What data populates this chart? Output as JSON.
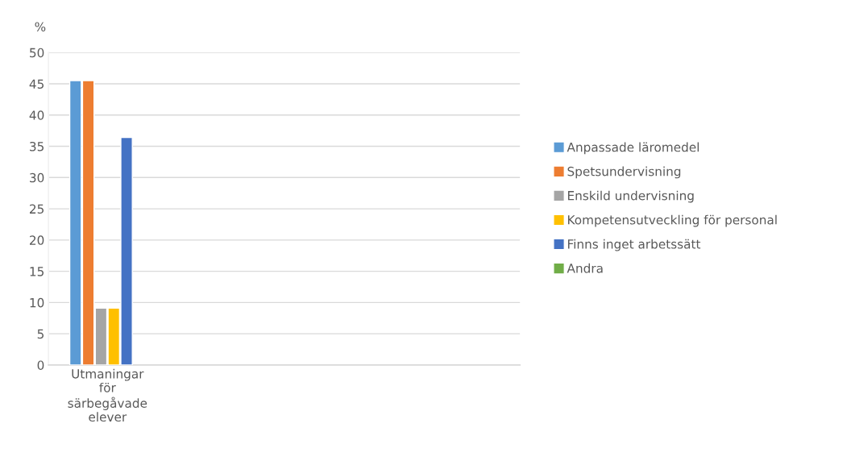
{
  "chart_data": {
    "type": "bar",
    "ylabel": "%",
    "categories": [
      "Utmaningar för särbegåvade elever",
      null,
      null,
      null
    ],
    "series": [
      {
        "name": "Anpassade läromedel",
        "color": "#5b9bd5",
        "values": [
          45.5,
          null,
          null,
          null
        ]
      },
      {
        "name": "Spetsundervisning",
        "color": "#ed7d31",
        "values": [
          45.5,
          null,
          null,
          null
        ]
      },
      {
        "name": "Enskild undervisning",
        "color": "#a5a5a5",
        "values": [
          9.1,
          null,
          null,
          null
        ]
      },
      {
        "name": "Kompetensutveckling för personal",
        "color": "#ffc000",
        "values": [
          9.1,
          null,
          null,
          null
        ]
      },
      {
        "name": "Finns inget arbetssätt",
        "color": "#4472c4",
        "values": [
          36.4,
          null,
          null,
          null
        ]
      },
      {
        "name": "Andra",
        "color": "#70ad47",
        "values": [
          null,
          null,
          null,
          null
        ]
      }
    ],
    "ylim": [
      0,
      50
    ],
    "yticks": [
      0,
      5,
      10,
      15,
      20,
      25,
      30,
      35,
      40,
      45,
      50
    ],
    "grid": "y",
    "legend": "right"
  }
}
